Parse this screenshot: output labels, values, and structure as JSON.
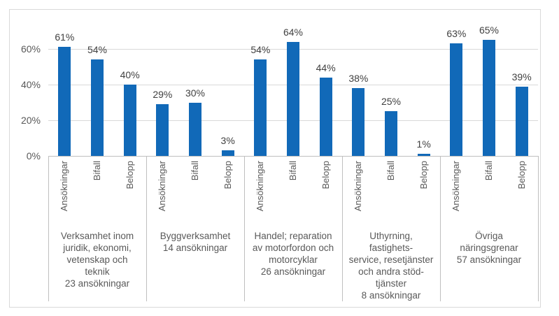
{
  "colors": {
    "bar": "#1169B8",
    "gridline": "#D9D9D9",
    "axis_line": "#BFBFBF",
    "divider": "#BFBFBF",
    "frame_border": "#D9D9D9",
    "data_label_text": "#404040",
    "axis_text": "#595959"
  },
  "chart_data": {
    "type": "bar",
    "title": "",
    "xlabel": "",
    "ylabel": "",
    "grid": true,
    "legend": "none",
    "ylim": [
      0,
      70
    ],
    "y_ticks": [
      {
        "value": 0,
        "label": "0%"
      },
      {
        "value": 20,
        "label": "20%"
      },
      {
        "value": 40,
        "label": "40%"
      },
      {
        "value": 60,
        "label": "60%"
      }
    ],
    "sub_categories": [
      "Ansökningar",
      "Bifall",
      "Belopp"
    ],
    "data_label_suffix": "%",
    "groups": [
      {
        "label_lines": [
          "Verksamhet inom",
          "juridik, ekonomi,",
          "vetenskap och",
          "teknik",
          "23 ansökningar"
        ],
        "values": [
          61,
          54,
          40
        ]
      },
      {
        "label_lines": [
          "Byggverksamhet",
          "14 ansökningar"
        ],
        "values": [
          29,
          30,
          3
        ]
      },
      {
        "label_lines": [
          "Handel; reparation",
          "av motorfordon och",
          "motorcyklar",
          "26 ansökningar"
        ],
        "values": [
          54,
          64,
          44
        ]
      },
      {
        "label_lines": [
          "Uthyrning,",
          "fastighets-",
          "service, resetjänster",
          "och andra stöd-",
          "tjänster",
          "8 ansökningar"
        ],
        "values": [
          38,
          25,
          1
        ]
      },
      {
        "label_lines": [
          "Övriga",
          "näringsgrenar",
          "57 ansökningar"
        ],
        "values": [
          63,
          65,
          39
        ]
      }
    ]
  }
}
